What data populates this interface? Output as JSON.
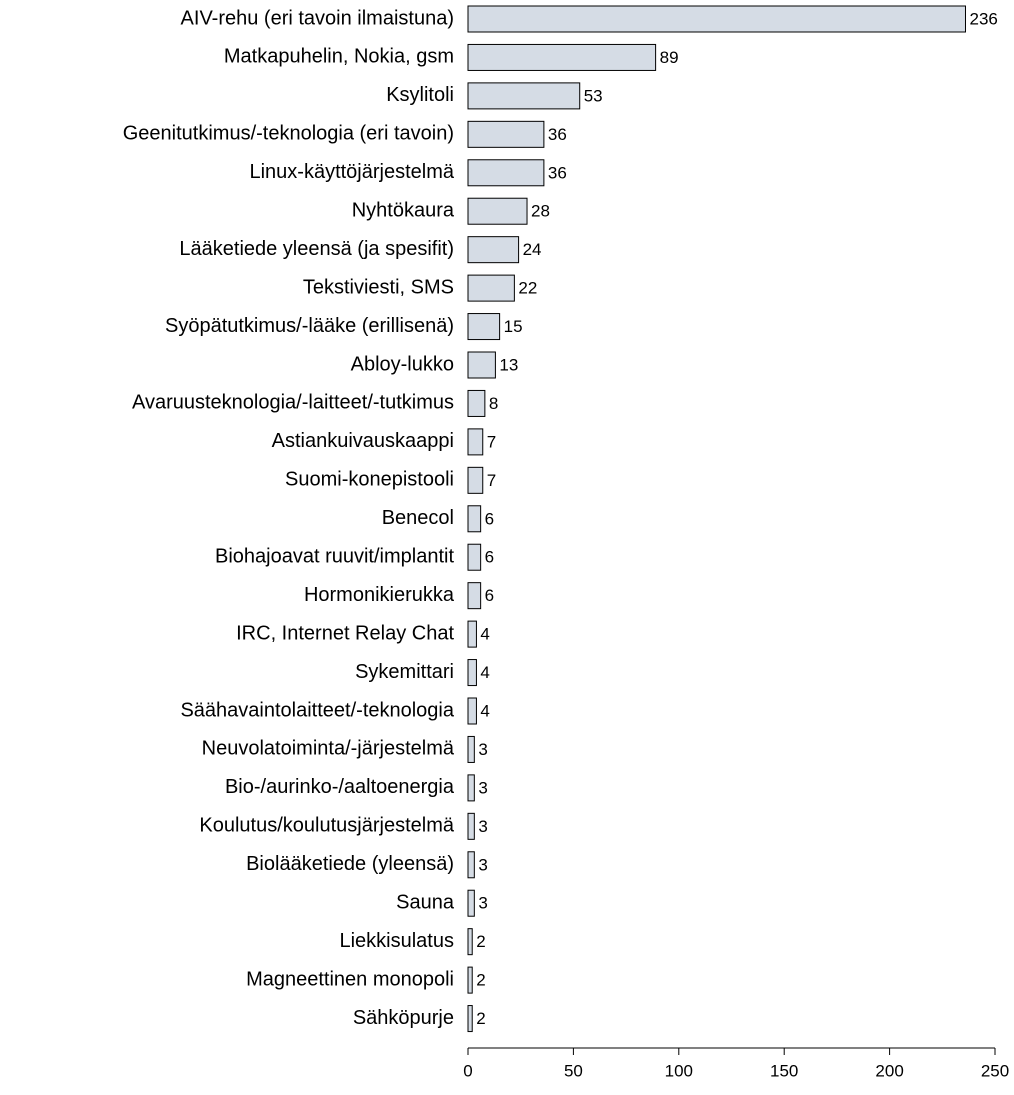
{
  "chart_data": {
    "type": "barh",
    "categories": [
      "AIV-rehu (eri tavoin ilmaistuna)",
      "Matkapuhelin, Nokia, gsm",
      "Ksylitoli",
      "Geenitutkimus/-teknologia (eri tavoin)",
      "Linux-käyttöjärjestelmä",
      "Nyhtökaura",
      "Lääketiede yleensä (ja spesifit)",
      "Tekstiviesti, SMS",
      "Syöpätutkimus/-lääke (erillisenä)",
      "Abloy-lukko",
      "Avaruusteknologia/-laitteet/-tutkimus",
      "Astiankuivauskaappi",
      "Suomi-konepistooli",
      "Benecol",
      "Biohajoavat ruuvit/implantit",
      "Hormonikierukka",
      "IRC, Internet Relay Chat",
      "Sykemittari",
      "Säähavaintolaitteet/-teknologia",
      "Neuvolatoiminta/-järjestelmä",
      "Bio-/aurinko-/aaltoenergia",
      "Koulutus/koulutusjärjestelmä",
      "Biolääketiede (yleensä)",
      "Sauna",
      "Liekkisulatus",
      "Magneettinen monopoli",
      "Sähköpurje"
    ],
    "values": [
      236,
      89,
      53,
      36,
      36,
      28,
      24,
      22,
      15,
      13,
      8,
      7,
      7,
      6,
      6,
      6,
      4,
      4,
      4,
      3,
      3,
      3,
      3,
      3,
      2,
      2,
      2
    ],
    "color": "#d5dce5",
    "xlim": [
      0,
      250
    ],
    "xticks": [
      0,
      50,
      100,
      150,
      200,
      250
    ]
  }
}
